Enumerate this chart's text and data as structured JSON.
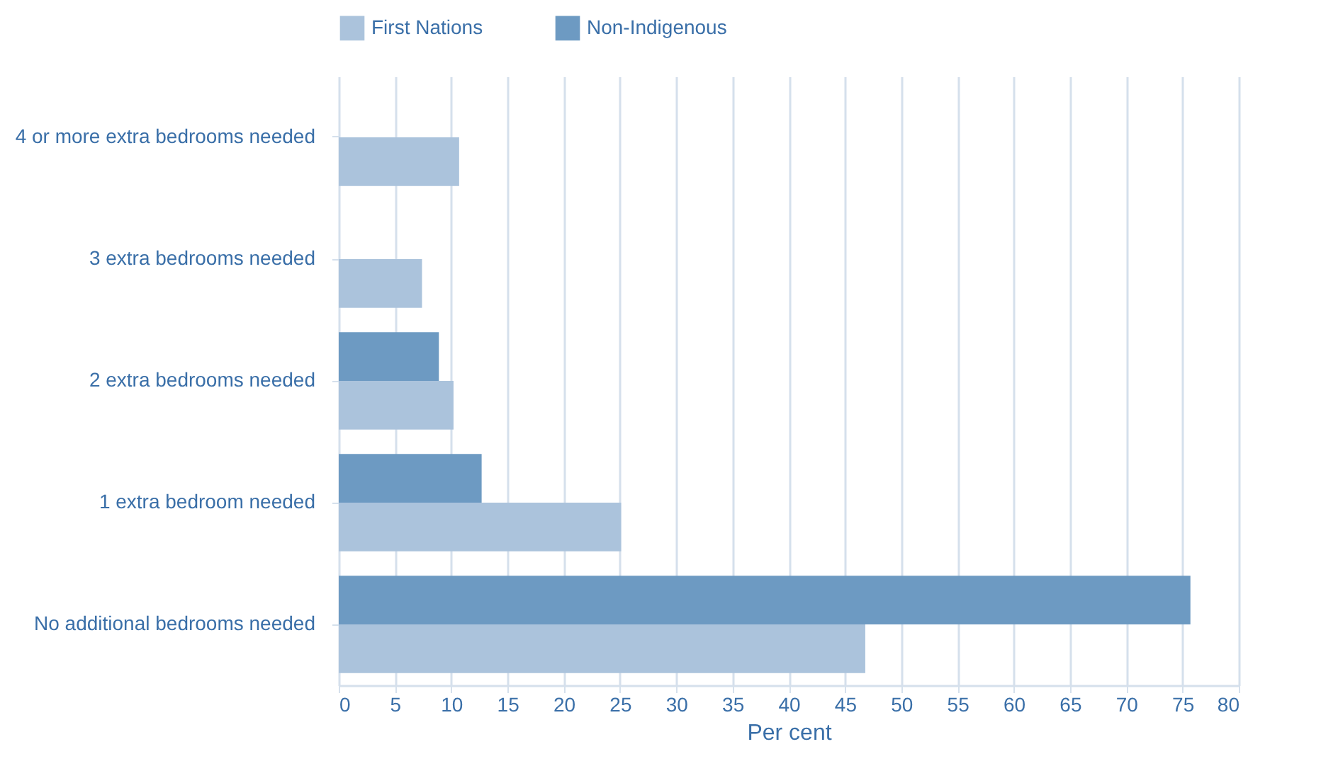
{
  "chart_data": {
    "type": "bar",
    "orientation": "horizontal",
    "xlabel": "Per cent",
    "categories": [
      "4 or more extra bedrooms needed",
      "3 extra bedrooms needed",
      "2 extra bedrooms needed",
      "1 extra bedroom needed",
      "No additional bedrooms needed"
    ],
    "series": [
      {
        "name": "First Nations",
        "color": "#abc3dc",
        "values": [
          10.7,
          7.4,
          10.2,
          25.1,
          46.8
        ]
      },
      {
        "name": "Non-Indigenous",
        "color": "#6d9ac2",
        "values": [
          null,
          null,
          8.9,
          12.7,
          75.7
        ]
      }
    ],
    "xlim": [
      0,
      80
    ],
    "xticks": [
      0,
      5,
      10,
      15,
      20,
      25,
      30,
      35,
      40,
      45,
      50,
      55,
      60,
      65,
      70,
      75,
      80
    ],
    "grid": "x",
    "legend": "top"
  }
}
